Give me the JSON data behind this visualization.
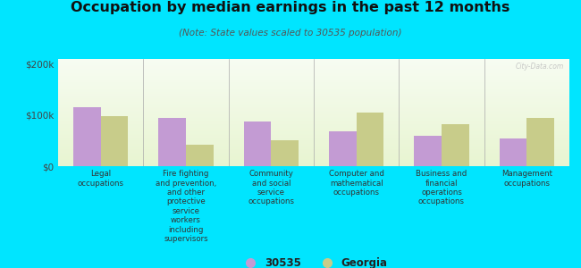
{
  "title": "Occupation by median earnings in the past 12 months",
  "subtitle": "(Note: State values scaled to 30535 population)",
  "categories": [
    "Legal\noccupations",
    "Fire fighting\nand prevention,\nand other\nprotective\nservice\nworkers\nincluding\nsupervisors",
    "Community\nand social\nservice\noccupations",
    "Computer and\nmathematical\noccupations",
    "Business and\nfinancial\noperations\noccupations",
    "Management\noccupations"
  ],
  "values_30535": [
    115000,
    95000,
    88000,
    68000,
    60000,
    55000
  ],
  "values_georgia": [
    98000,
    42000,
    50000,
    105000,
    82000,
    95000
  ],
  "color_30535": "#c39bd3",
  "color_georgia": "#c8cc8a",
  "background_color": "#00e5ff",
  "ylim": [
    0,
    210000
  ],
  "yticks": [
    0,
    100000,
    200000
  ],
  "ytick_labels": [
    "$0",
    "$100k",
    "$200k"
  ],
  "legend_label_30535": "30535",
  "legend_label_georgia": "Georgia",
  "watermark": "City-Data.com"
}
